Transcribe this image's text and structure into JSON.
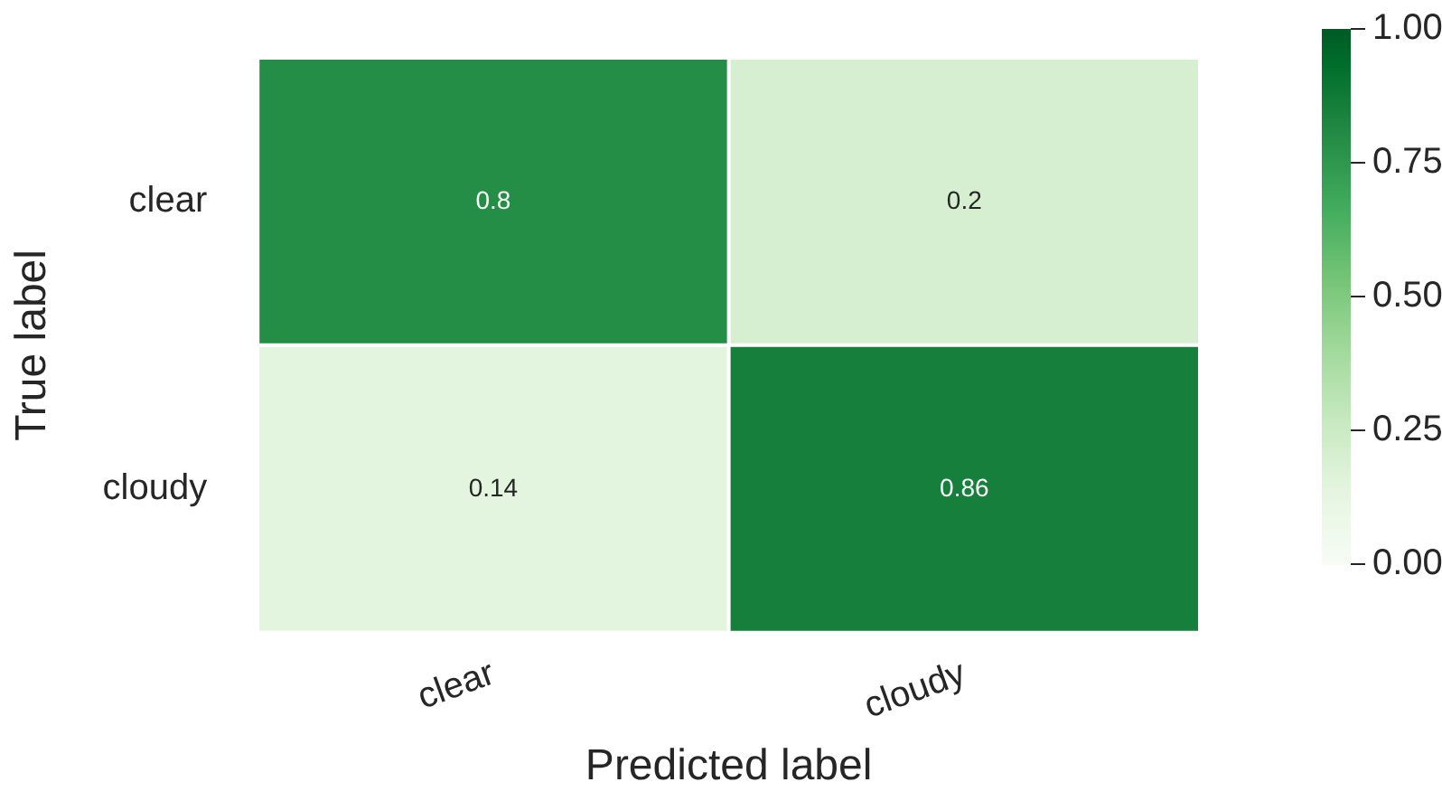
{
  "chart_data": {
    "type": "heatmap",
    "xlabel": "Predicted label",
    "ylabel": "True label",
    "categories": [
      "clear",
      "cloudy"
    ],
    "y_categories": [
      "clear",
      "cloudy"
    ],
    "cells": [
      [
        0.8,
        0.2
      ],
      [
        0.14,
        0.86
      ]
    ],
    "clim": [
      0,
      1
    ],
    "cticks": [
      {
        "value": 0,
        "label": "0.00"
      },
      {
        "value": 0.25,
        "label": "0.25"
      },
      {
        "value": 0.5,
        "label": "0.50"
      },
      {
        "value": 0.75,
        "label": "0.75"
      },
      {
        "value": 1,
        "label": "1.00"
      }
    ],
    "data_labels": true
  }
}
